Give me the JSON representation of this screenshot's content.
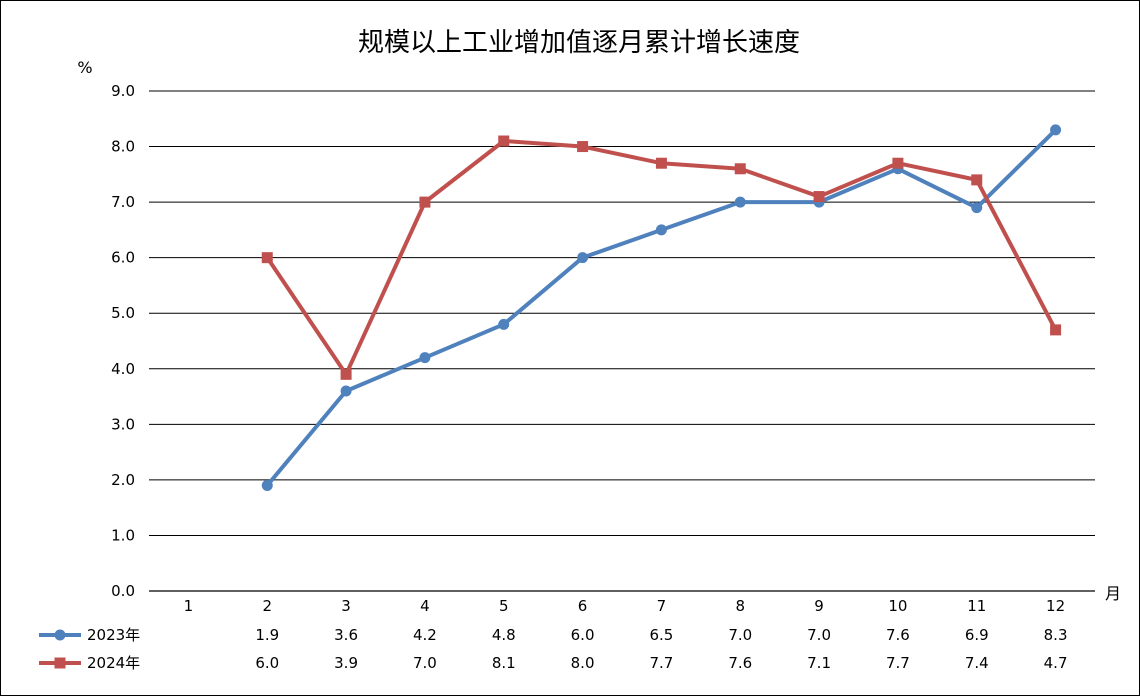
{
  "chart_data": {
    "type": "line",
    "title": "规模以上工业增加值逐月累计增长速度",
    "ylabel": "%",
    "xlabel": "月",
    "ylim": [
      0,
      9
    ],
    "yticks": [
      "0.0",
      "1.0",
      "2.0",
      "3.0",
      "4.0",
      "5.0",
      "6.0",
      "7.0",
      "8.0",
      "9.0"
    ],
    "categories": [
      "1",
      "2",
      "3",
      "4",
      "5",
      "6",
      "7",
      "8",
      "9",
      "10",
      "11",
      "12"
    ],
    "grid": true,
    "legend_placement": "bottom-left data table",
    "series": [
      {
        "name": "2023年",
        "color": "#4f81bd",
        "marker": "circle",
        "values": [
          null,
          1.9,
          3.6,
          4.2,
          4.8,
          6.0,
          6.5,
          7.0,
          7.0,
          7.6,
          6.9,
          8.3
        ],
        "labels": [
          "",
          "1.9",
          "3.6",
          "4.2",
          "4.8",
          "6.0",
          "6.5",
          "7.0",
          "7.0",
          "7.6",
          "6.9",
          "8.3"
        ]
      },
      {
        "name": "2024年",
        "color": "#c0504d",
        "marker": "square",
        "values": [
          null,
          6.0,
          3.9,
          7.0,
          8.1,
          8.0,
          7.7,
          7.6,
          7.1,
          7.7,
          7.4,
          4.7
        ],
        "labels": [
          "",
          "6.0",
          "3.9",
          "7.0",
          "8.1",
          "8.0",
          "7.7",
          "7.6",
          "7.1",
          "7.7",
          "7.4",
          "4.7"
        ]
      }
    ]
  }
}
